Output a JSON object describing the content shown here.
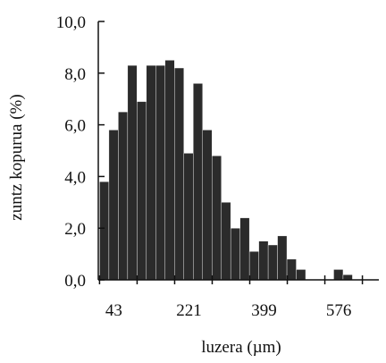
{
  "chart_data": {
    "type": "bar",
    "title": "",
    "xlabel": "luzera (µm)",
    "ylabel": "zuntz kopurua (%)",
    "y_ticks": [
      "0,0",
      "2,0",
      "4,0",
      "6,0",
      "8,0",
      "10,0"
    ],
    "y_tick_values": [
      0,
      2,
      4,
      6,
      8,
      10
    ],
    "x_ticks": [
      "43",
      "221",
      "399",
      "576"
    ],
    "x_tick_values": [
      43,
      221,
      399,
      576
    ],
    "ylim": [
      0,
      10
    ],
    "xlim": [
      40,
      705
    ],
    "bin_width": 22.2,
    "bin_start": 43,
    "values": [
      3.8,
      5.8,
      6.5,
      8.3,
      6.9,
      8.3,
      8.3,
      8.5,
      8.2,
      4.9,
      7.6,
      5.8,
      4.8,
      3.0,
      2.0,
      2.4,
      1.1,
      1.5,
      1.35,
      1.7,
      0.8,
      0.4,
      0,
      0,
      0,
      0.4,
      0.2,
      0,
      0,
      0,
      0
    ],
    "grid": false,
    "colors": {
      "bar": "#2b2b2b",
      "axis": "#111111"
    }
  }
}
